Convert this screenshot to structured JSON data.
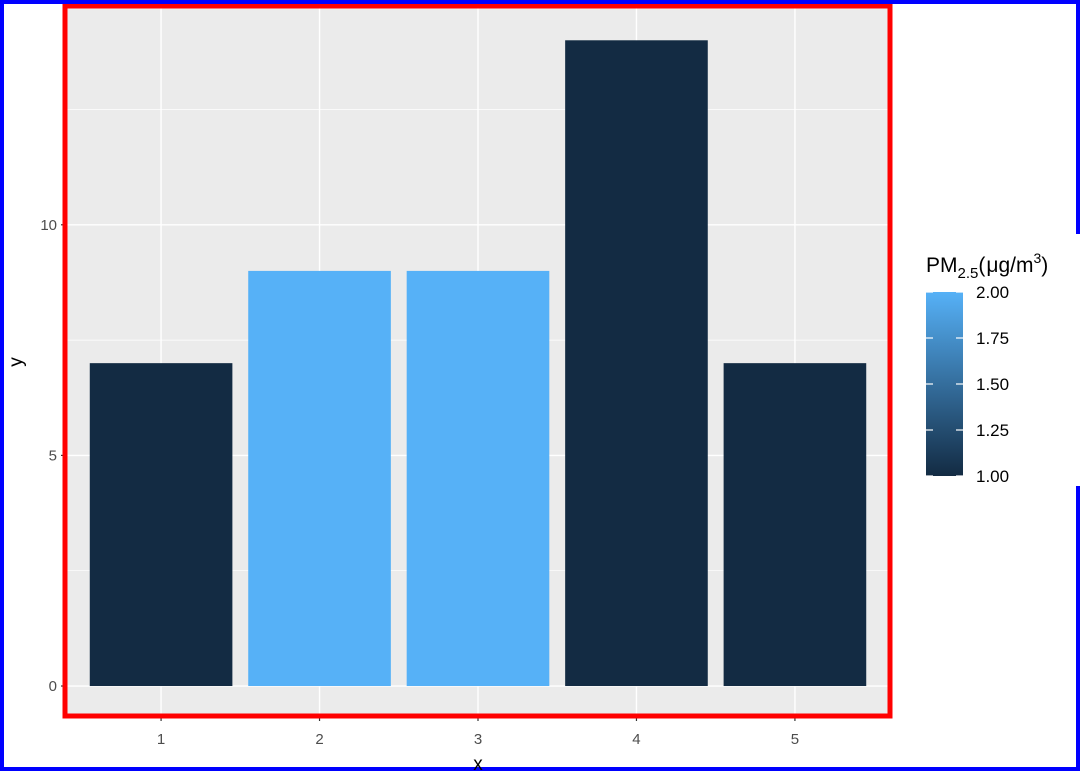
{
  "chart_data": {
    "type": "bar",
    "categories": [
      "1",
      "2",
      "3",
      "4",
      "5"
    ],
    "x": [
      1,
      2,
      3,
      4,
      5
    ],
    "values": [
      7,
      9,
      9,
      14,
      7
    ],
    "fill_values": [
      1,
      2,
      2,
      1,
      1
    ],
    "xlabel": "x",
    "ylabel": "y",
    "ylim": [
      -0.65,
      14.7
    ],
    "yticks": [
      0,
      5,
      10
    ],
    "grid": true,
    "legend": {
      "title_main": "PM",
      "title_sub": "2.5",
      "title_paren_open": "(",
      "title_unit": "μg",
      "title_slash": "/",
      "title_m": "m",
      "title_sup": "3",
      "title_paren_close": ")",
      "placement": "right",
      "ticks": [
        "2.00",
        "1.75",
        "1.50",
        "1.25",
        "1.00"
      ],
      "tick_values": [
        2.0,
        1.75,
        1.5,
        1.25,
        1.0
      ],
      "range": [
        1,
        2
      ],
      "color_low": "#132B43",
      "color_high": "#56B1F7"
    }
  },
  "colors": {
    "panel_background": "#EBEBEB",
    "grid": "#FFFFFF",
    "outer_border": "#0000FF",
    "panel_border": "#FF0000"
  }
}
